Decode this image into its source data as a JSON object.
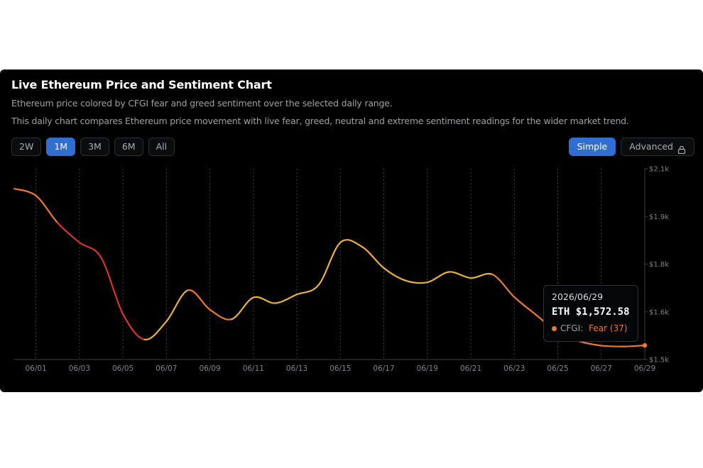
{
  "header": {
    "title": "Live Ethereum Price and Sentiment Chart",
    "subtitle": "Ethereum price colored by CFGI fear and greed sentiment over the selected daily range.",
    "description": "This daily chart compares Ethereum price movement with live fear, greed, neutral and extreme sentiment readings for the wider market trend."
  },
  "range_tabs": [
    {
      "label": "2W",
      "active": false
    },
    {
      "label": "1M",
      "active": true
    },
    {
      "label": "3M",
      "active": false
    },
    {
      "label": "6M",
      "active": false
    },
    {
      "label": "All",
      "active": false
    }
  ],
  "mode": {
    "simple_label": "Simple",
    "advanced_label": "Advanced",
    "selected": "Simple",
    "advanced_icon": "lock-icon"
  },
  "tooltip": {
    "date": "2026/06/29",
    "price": "ETH $1,572.58",
    "cfgi_label": "CFGI:",
    "cfgi_value": "Fear (37)",
    "cfgi_color": "#f07a2a"
  },
  "colors": {
    "accent": "#2f6fd1",
    "extreme_fear": "#d8342c",
    "fear": "#f07a2a",
    "neutral": "#e8b23a"
  },
  "chart_data": {
    "type": "line",
    "title": "Live Ethereum Price and Sentiment Chart",
    "xlabel": "",
    "ylabel": "",
    "x_ticks": [
      "06/01",
      "06/03",
      "06/05",
      "06/07",
      "06/09",
      "06/11",
      "06/13",
      "06/15",
      "06/17",
      "06/19",
      "06/21",
      "06/23",
      "06/25",
      "06/27",
      "06/29"
    ],
    "y_ticks": [
      "$2.1k",
      "$1.9k",
      "$1.8k",
      "$1.6k",
      "$1.5k"
    ],
    "ylim": [
      1540,
      1980
    ],
    "x_range": [
      "2026-05-31",
      "2026-06-29"
    ],
    "grid": "vertical dotted",
    "series": [
      {
        "x": [
          "2026-05-31",
          "2026-06-01",
          "2026-06-02",
          "2026-06-03",
          "2026-06-04",
          "2026-06-05",
          "2026-06-06",
          "2026-06-07",
          "2026-06-08",
          "2026-06-09",
          "2026-06-10",
          "2026-06-11",
          "2026-06-12",
          "2026-06-13",
          "2026-06-14",
          "2026-06-15",
          "2026-06-16",
          "2026-06-17",
          "2026-06-18",
          "2026-06-19",
          "2026-06-20",
          "2026-06-21",
          "2026-06-22",
          "2026-06-23",
          "2026-06-24",
          "2026-06-25",
          "2026-06-26",
          "2026-06-27",
          "2026-06-28",
          "2026-06-29"
        ],
        "values": [
          1934,
          1918,
          1855,
          1810,
          1775,
          1645,
          1586,
          1628,
          1700,
          1655,
          1633,
          1683,
          1670,
          1690,
          1712,
          1810,
          1800,
          1751,
          1722,
          1718,
          1742,
          1728,
          1736,
          1684,
          1643,
          1603,
          1582,
          1572,
          1570,
          1572.58
        ],
        "sentiment": [
          "fear",
          "fear",
          "fear",
          "extreme-fear",
          "extreme-fear",
          "extreme-fear",
          "extreme-fear",
          "neutral",
          "neutral",
          "fear",
          "fear",
          "neutral",
          "neutral",
          "neutral",
          "neutral",
          "neutral",
          "neutral",
          "neutral",
          "neutral",
          "neutral",
          "neutral",
          "neutral",
          "neutral",
          "fear",
          "fear",
          "fear",
          "fear",
          "fear",
          "fear",
          "fear"
        ]
      }
    ]
  }
}
